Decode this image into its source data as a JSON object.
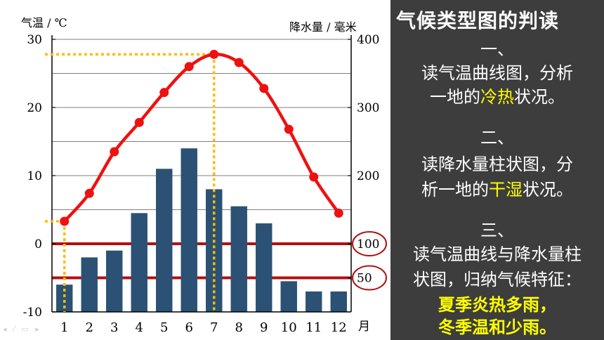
{
  "chart_data": {
    "type": "bar+line",
    "title": "",
    "categories": [
      "1",
      "2",
      "3",
      "4",
      "5",
      "6",
      "7",
      "8",
      "9",
      "10",
      "11",
      "12"
    ],
    "x_unit_label": "月",
    "left_axis": {
      "label": "气温 / ℃",
      "range": [
        -10,
        30
      ],
      "ticks": [
        "30",
        "20",
        "10",
        "0",
        "-10"
      ]
    },
    "right_axis": {
      "label": "降水量 / 毫米",
      "range": [
        0,
        400
      ],
      "ticks": [
        "400",
        "300",
        "200",
        "100",
        "50"
      ],
      "circled_ticks": [
        "100",
        "50"
      ]
    },
    "series": [
      {
        "kind": "line",
        "axis": "left",
        "color": "#ee1111",
        "values": [
          3.3,
          7.4,
          13.5,
          17.8,
          22.2,
          26.0,
          27.8,
          26.6,
          22.8,
          16.8,
          9.8,
          4.5
        ]
      },
      {
        "kind": "bar",
        "axis": "right",
        "color": "#2b5274",
        "values": [
          40,
          80,
          90,
          145,
          210,
          240,
          180,
          155,
          130,
          45,
          30,
          30
        ]
      }
    ],
    "reference_lines": [
      {
        "axis": "right",
        "value": 100,
        "color": "#b01010"
      },
      {
        "axis": "right",
        "value": 50,
        "color": "#b01010"
      }
    ],
    "guides": [
      {
        "axis": "left",
        "value": 27.8,
        "month": "7",
        "color": "#ffbb00"
      },
      {
        "axis": "left",
        "value": 3.3,
        "month": "1",
        "color": "#ffbb00"
      }
    ],
    "grid": true
  },
  "panel": {
    "title": "气候类型图的判读",
    "s1_num": "一、",
    "s1_line1": "读气温曲线图，分析",
    "s1_line2_pre": "一地的",
    "s1_line2_hl": "冷热",
    "s1_line2_post": "状况。",
    "s2_num": "二、",
    "s2_line1": "读降水量柱状图，分",
    "s2_line2_pre": "析一地的",
    "s2_line2_hl": "干湿",
    "s2_line2_post": "状况。",
    "s3_num": "三、",
    "s3_line1": "读气温曲线与降水量柱",
    "s3_line2": "状图，归纳气候特征：",
    "s3_concl1": "夏季炎热多雨，",
    "s3_concl2": "冬季温和少雨。"
  }
}
